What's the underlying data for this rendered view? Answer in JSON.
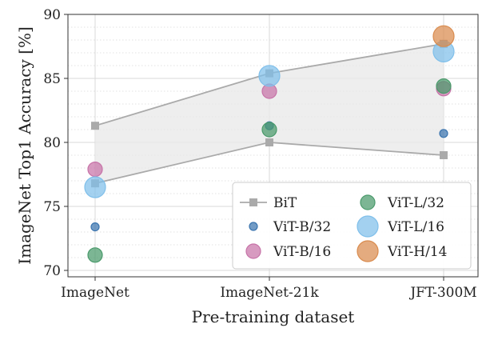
{
  "chart_data": {
    "type": "scatter",
    "title": "",
    "xlabel": "Pre-training dataset",
    "ylabel": "ImageNet Top1 Accuracy [%]",
    "categories": [
      "ImageNet",
      "ImageNet-21k",
      "JFT-300M"
    ],
    "ylim": [
      69.5,
      90
    ],
    "yticks": [
      70,
      75,
      80,
      85,
      90
    ],
    "grid": true,
    "legend_position": "bottom-right",
    "bit_band": {
      "name": "BiT",
      "upper": [
        81.3,
        85.4,
        87.7
      ],
      "lower": [
        76.8,
        80.0,
        79.0
      ],
      "color": "#aaaaaa",
      "fill": "#e8e8e8"
    },
    "series": [
      {
        "name": "ViT-B/32",
        "color": "#3b75af",
        "size": 1,
        "values": [
          73.4,
          81.3,
          80.7
        ]
      },
      {
        "name": "ViT-B/16",
        "color": "#c773a8",
        "size": 2,
        "values": [
          77.9,
          84.0,
          84.2
        ]
      },
      {
        "name": "ViT-L/32",
        "color": "#4a9a6b",
        "size": 2,
        "values": [
          71.2,
          81.0,
          84.4
        ]
      },
      {
        "name": "ViT-L/16",
        "color": "#7fbfea",
        "size": 3,
        "values": [
          76.5,
          85.2,
          87.1
        ]
      },
      {
        "name": "ViT-H/14",
        "color": "#d98b4e",
        "size": 3,
        "values": [
          null,
          null,
          88.3
        ]
      }
    ]
  }
}
